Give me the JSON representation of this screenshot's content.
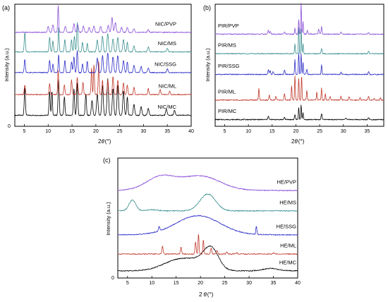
{
  "chart_data": [
    {
      "panel_label": "(a)",
      "type": "line",
      "ylabel": "Intensity (a.u.)",
      "xlabel_main": "2",
      "xlabel_theta": "θ",
      "xlabel_unit": "(°)",
      "xlim": [
        3,
        40
      ],
      "xticks": [
        5,
        10,
        15,
        20,
        25,
        30,
        35,
        40
      ],
      "yticks": [
        0
      ],
      "grid": false,
      "series": [
        {
          "name": "NIC/MC",
          "color": "#000000",
          "offset": 0.04,
          "baseline": 0.05,
          "peaks": [
            [
              5.1,
              0.23,
              0.12
            ],
            [
              10.3,
              0.2,
              0.12
            ],
            [
              10.8,
              0.2,
              0.1
            ],
            [
              12.2,
              0.3,
              0.12
            ],
            [
              13.4,
              0.15,
              0.12
            ],
            [
              15.4,
              0.22,
              0.12
            ],
            [
              16.1,
              0.27,
              0.12
            ],
            [
              17.9,
              0.18,
              0.12
            ],
            [
              19.2,
              0.12,
              0.15
            ],
            [
              20.3,
              0.18,
              0.15
            ],
            [
              21.4,
              0.25,
              0.15
            ],
            [
              22.5,
              0.3,
              0.15
            ],
            [
              23.6,
              0.22,
              0.15
            ],
            [
              24.6,
              0.25,
              0.15
            ],
            [
              25.8,
              0.2,
              0.15
            ],
            [
              26.6,
              0.15,
              0.12
            ],
            [
              28.0,
              0.09,
              0.15
            ],
            [
              29.5,
              0.07,
              0.15
            ],
            [
              31.0,
              0.06,
              0.15
            ],
            [
              34.8,
              0.05,
              0.15
            ],
            [
              36.5,
              0.04,
              0.15
            ]
          ]
        },
        {
          "name": "NIC/ML",
          "color": "#c0392b",
          "offset": 0.22,
          "baseline": 0.04,
          "peaks": [
            [
              5.1,
              0.08,
              0.12
            ],
            [
              10.3,
              0.09,
              0.12
            ],
            [
              12.1,
              0.2,
              0.1
            ],
            [
              13.4,
              0.08,
              0.12
            ],
            [
              14.9,
              0.12,
              0.12
            ],
            [
              16.1,
              0.14,
              0.12
            ],
            [
              17.3,
              0.1,
              0.12
            ],
            [
              19.1,
              0.22,
              0.1
            ],
            [
              19.6,
              0.25,
              0.1
            ],
            [
              20.6,
              0.28,
              0.1
            ],
            [
              21.4,
              0.12,
              0.1
            ],
            [
              22.5,
              0.12,
              0.12
            ],
            [
              23.6,
              0.15,
              0.12
            ],
            [
              24.6,
              0.12,
              0.12
            ],
            [
              25.8,
              0.1,
              0.12
            ],
            [
              26.6,
              0.08,
              0.12
            ],
            [
              28.0,
              0.06,
              0.12
            ],
            [
              31.0,
              0.05,
              0.12
            ],
            [
              33.5,
              0.04,
              0.12
            ],
            [
              35.5,
              0.03,
              0.12
            ]
          ]
        },
        {
          "name": "NIC/SSG",
          "color": "#2d2dc8",
          "offset": 0.4,
          "baseline": 0.04,
          "peaks": [
            [
              5.1,
              0.11,
              0.12
            ],
            [
              10.3,
              0.1,
              0.12
            ],
            [
              11.0,
              0.07,
              0.12
            ],
            [
              12.2,
              0.15,
              0.1
            ],
            [
              13.5,
              0.1,
              0.12
            ],
            [
              14.9,
              0.09,
              0.12
            ],
            [
              15.4,
              0.13,
              0.12
            ],
            [
              16.1,
              0.18,
              0.12
            ],
            [
              17.2,
              0.07,
              0.12
            ],
            [
              18.2,
              0.09,
              0.12
            ],
            [
              20.3,
              0.12,
              0.15
            ],
            [
              21.4,
              0.14,
              0.15
            ],
            [
              22.5,
              0.16,
              0.15
            ],
            [
              23.6,
              0.13,
              0.15
            ],
            [
              24.6,
              0.14,
              0.15
            ],
            [
              25.8,
              0.1,
              0.15
            ],
            [
              26.6,
              0.09,
              0.12
            ],
            [
              28.0,
              0.06,
              0.15
            ],
            [
              29.5,
              0.05,
              0.15
            ],
            [
              31.0,
              0.04,
              0.15
            ],
            [
              35.0,
              0.03,
              0.15
            ]
          ]
        },
        {
          "name": "NIC/MS",
          "color": "#3a8f8f",
          "offset": 0.57,
          "baseline": 0.04,
          "peaks": [
            [
              5.1,
              0.16,
              0.12
            ],
            [
              10.3,
              0.12,
              0.12
            ],
            [
              11.0,
              0.09,
              0.12
            ],
            [
              12.2,
              0.2,
              0.1
            ],
            [
              13.5,
              0.1,
              0.12
            ],
            [
              14.9,
              0.1,
              0.12
            ],
            [
              15.5,
              0.13,
              0.12
            ],
            [
              16.1,
              0.24,
              0.12
            ],
            [
              17.2,
              0.08,
              0.12
            ],
            [
              18.2,
              0.07,
              0.12
            ],
            [
              20.3,
              0.1,
              0.15
            ],
            [
              21.4,
              0.13,
              0.15
            ],
            [
              22.5,
              0.15,
              0.15
            ],
            [
              23.6,
              0.11,
              0.15
            ],
            [
              24.6,
              0.12,
              0.15
            ],
            [
              25.8,
              0.1,
              0.15
            ],
            [
              26.6,
              0.08,
              0.12
            ],
            [
              28.0,
              0.05,
              0.15
            ],
            [
              31.0,
              0.04,
              0.15
            ],
            [
              35.0,
              0.03,
              0.15
            ]
          ]
        },
        {
          "name": "NIC/PVP",
          "color": "#8a4fd8",
          "offset": 0.74,
          "baseline": 0.03,
          "peaks": [
            [
              10.0,
              0.05,
              0.15
            ],
            [
              11.0,
              0.06,
              0.15
            ],
            [
              12.1,
              0.22,
              0.1
            ],
            [
              13.6,
              0.05,
              0.15
            ],
            [
              15.4,
              0.07,
              0.15
            ],
            [
              16.2,
              0.06,
              0.15
            ],
            [
              17.4,
              0.05,
              0.15
            ],
            [
              18.6,
              0.04,
              0.15
            ],
            [
              19.6,
              0.05,
              0.15
            ],
            [
              21.0,
              0.05,
              0.15
            ],
            [
              22.6,
              0.06,
              0.15
            ],
            [
              23.4,
              0.12,
              0.15
            ],
            [
              24.1,
              0.08,
              0.15
            ],
            [
              25.4,
              0.04,
              0.15
            ],
            [
              26.6,
              0.04,
              0.15
            ],
            [
              28.0,
              0.03,
              0.15
            ],
            [
              31.0,
              0.02,
              0.15
            ]
          ]
        }
      ]
    },
    {
      "panel_label": "(b)",
      "type": "line",
      "ylabel": "Intensity (a.u.)",
      "xlabel_main": "2",
      "xlabel_theta": "θ",
      "xlabel_unit": "(°)",
      "xlim": [
        3,
        38.5
      ],
      "xticks": [
        5,
        10,
        15,
        20,
        25,
        30,
        35
      ],
      "yticks": [],
      "grid": false,
      "series": [
        {
          "name": "PIR/MC",
          "color": "#000000",
          "offset": 0.04,
          "baseline": 0.015,
          "peaks": [
            [
              14.2,
              0.03,
              0.1
            ],
            [
              17.6,
              0.02,
              0.1
            ],
            [
              19.8,
              0.04,
              0.1
            ],
            [
              20.6,
              0.1,
              0.08
            ],
            [
              21.1,
              0.12,
              0.08
            ],
            [
              21.5,
              0.06,
              0.08
            ],
            [
              25.4,
              0.05,
              0.1
            ],
            [
              30.5,
              0.015,
              0.12
            ],
            [
              35.3,
              0.015,
              0.12
            ]
          ]
        },
        {
          "name": "PIR/ML",
          "color": "#c0392b",
          "offset": 0.2,
          "baseline": 0.015,
          "peaks": [
            [
              12.2,
              0.1,
              0.08
            ],
            [
              14.4,
              0.04,
              0.1
            ],
            [
              15.8,
              0.03,
              0.1
            ],
            [
              17.6,
              0.05,
              0.1
            ],
            [
              19.1,
              0.12,
              0.08
            ],
            [
              19.8,
              0.2,
              0.08
            ],
            [
              20.6,
              0.18,
              0.08
            ],
            [
              21.2,
              0.2,
              0.08
            ],
            [
              22.3,
              0.08,
              0.08
            ],
            [
              24.4,
              0.07,
              0.08
            ],
            [
              25.4,
              0.1,
              0.08
            ],
            [
              26.2,
              0.05,
              0.08
            ],
            [
              27.2,
              0.03,
              0.1
            ],
            [
              29.5,
              0.03,
              0.1
            ],
            [
              31.2,
              0.025,
              0.1
            ],
            [
              33.5,
              0.02,
              0.1
            ],
            [
              35.3,
              0.03,
              0.1
            ],
            [
              36.5,
              0.015,
              0.1
            ],
            [
              37.8,
              0.02,
              0.1
            ]
          ]
        },
        {
          "name": "PIR/SSG",
          "color": "#2d2dc8",
          "offset": 0.41,
          "baseline": 0.015,
          "peaks": [
            [
              14.2,
              0.04,
              0.1
            ],
            [
              14.6,
              0.03,
              0.1
            ],
            [
              15.2,
              0.025,
              0.1
            ],
            [
              17.6,
              0.04,
              0.1
            ],
            [
              19.8,
              0.12,
              0.08
            ],
            [
              20.6,
              0.18,
              0.08
            ],
            [
              21.1,
              0.17,
              0.08
            ],
            [
              21.5,
              0.1,
              0.08
            ],
            [
              22.3,
              0.04,
              0.1
            ],
            [
              25.4,
              0.08,
              0.08
            ],
            [
              29.5,
              0.02,
              0.1
            ],
            [
              35.3,
              0.025,
              0.1
            ]
          ]
        },
        {
          "name": "PIR/MS",
          "color": "#3a8f8f",
          "offset": 0.58,
          "baseline": 0.015,
          "peaks": [
            [
              19.8,
              0.08,
              0.08
            ],
            [
              20.6,
              0.22,
              0.08
            ],
            [
              21.1,
              0.2,
              0.08
            ],
            [
              21.5,
              0.08,
              0.08
            ],
            [
              25.4,
              0.04,
              0.1
            ],
            [
              35.3,
              0.02,
              0.1
            ]
          ]
        },
        {
          "name": "PIR/PVP",
          "color": "#8a4fd8",
          "offset": 0.74,
          "baseline": 0.015,
          "peaks": [
            [
              14.2,
              0.03,
              0.1
            ],
            [
              14.6,
              0.025,
              0.1
            ],
            [
              17.6,
              0.02,
              0.1
            ],
            [
              19.8,
              0.05,
              0.08
            ],
            [
              20.6,
              0.12,
              0.08
            ],
            [
              21.1,
              0.26,
              0.07
            ],
            [
              21.5,
              0.1,
              0.08
            ],
            [
              22.4,
              0.03,
              0.1
            ],
            [
              24.8,
              0.04,
              0.1
            ],
            [
              25.4,
              0.06,
              0.1
            ],
            [
              29.5,
              0.02,
              0.1
            ],
            [
              35.3,
              0.015,
              0.1
            ]
          ]
        }
      ]
    },
    {
      "panel_label": "(c)",
      "type": "line",
      "ylabel": "Intensity (a.u.)",
      "xlabel_main": "2",
      "xlabel_theta": "θ",
      "xlabel_unit": "(°)",
      "xlim": [
        3,
        40
      ],
      "xticks": [
        5,
        10,
        15,
        20,
        25,
        30,
        35,
        40
      ],
      "yticks": [
        0
      ],
      "grid": false,
      "series": [
        {
          "name": "HE/MC",
          "color": "#000000",
          "offset": 0.05,
          "baseline": 0.01,
          "humps": [
            [
              15.5,
              0.09,
              3.2
            ],
            [
              22.2,
              0.16,
              1.5
            ],
            [
              20.0,
              0.05,
              2.5
            ],
            [
              34.5,
              0.02,
              1.5
            ]
          ]
        },
        {
          "name": "HE/ML",
          "color": "#c0392b",
          "offset": 0.19,
          "baseline": 0.01,
          "peaks": [
            [
              12.2,
              0.07,
              0.12
            ],
            [
              16.0,
              0.06,
              0.12
            ],
            [
              19.0,
              0.1,
              0.12
            ],
            [
              19.6,
              0.17,
              0.1
            ],
            [
              20.6,
              0.12,
              0.1
            ],
            [
              22.2,
              0.05,
              0.12
            ],
            [
              23.4,
              0.03,
              0.12
            ],
            [
              25.4,
              0.02,
              0.12
            ],
            [
              27.5,
              0.01,
              0.12
            ],
            [
              35.0,
              0.01,
              0.12
            ]
          ]
        },
        {
          "name": "HE/SSG",
          "color": "#2d2dc8",
          "offset": 0.35,
          "baseline": 0.01,
          "humps": [
            [
              19.5,
              0.16,
              4.5
            ]
          ],
          "peaks": [
            [
              11.5,
              0.04,
              0.12
            ],
            [
              31.5,
              0.07,
              0.1
            ]
          ]
        },
        {
          "name": "HE/MS",
          "color": "#3a8f8f",
          "offset": 0.55,
          "baseline": 0.01,
          "humps": [
            [
              21.5,
              0.14,
              1.6
            ],
            [
              6.0,
              0.09,
              0.7
            ],
            [
              10.0,
              0.01,
              1.0
            ]
          ]
        },
        {
          "name": "HE/PVP",
          "color": "#8a4fd8",
          "offset": 0.72,
          "baseline": 0.01,
          "humps": [
            [
              11.8,
              0.11,
              3.0
            ],
            [
              20.0,
              0.12,
              4.0
            ]
          ]
        }
      ]
    }
  ]
}
